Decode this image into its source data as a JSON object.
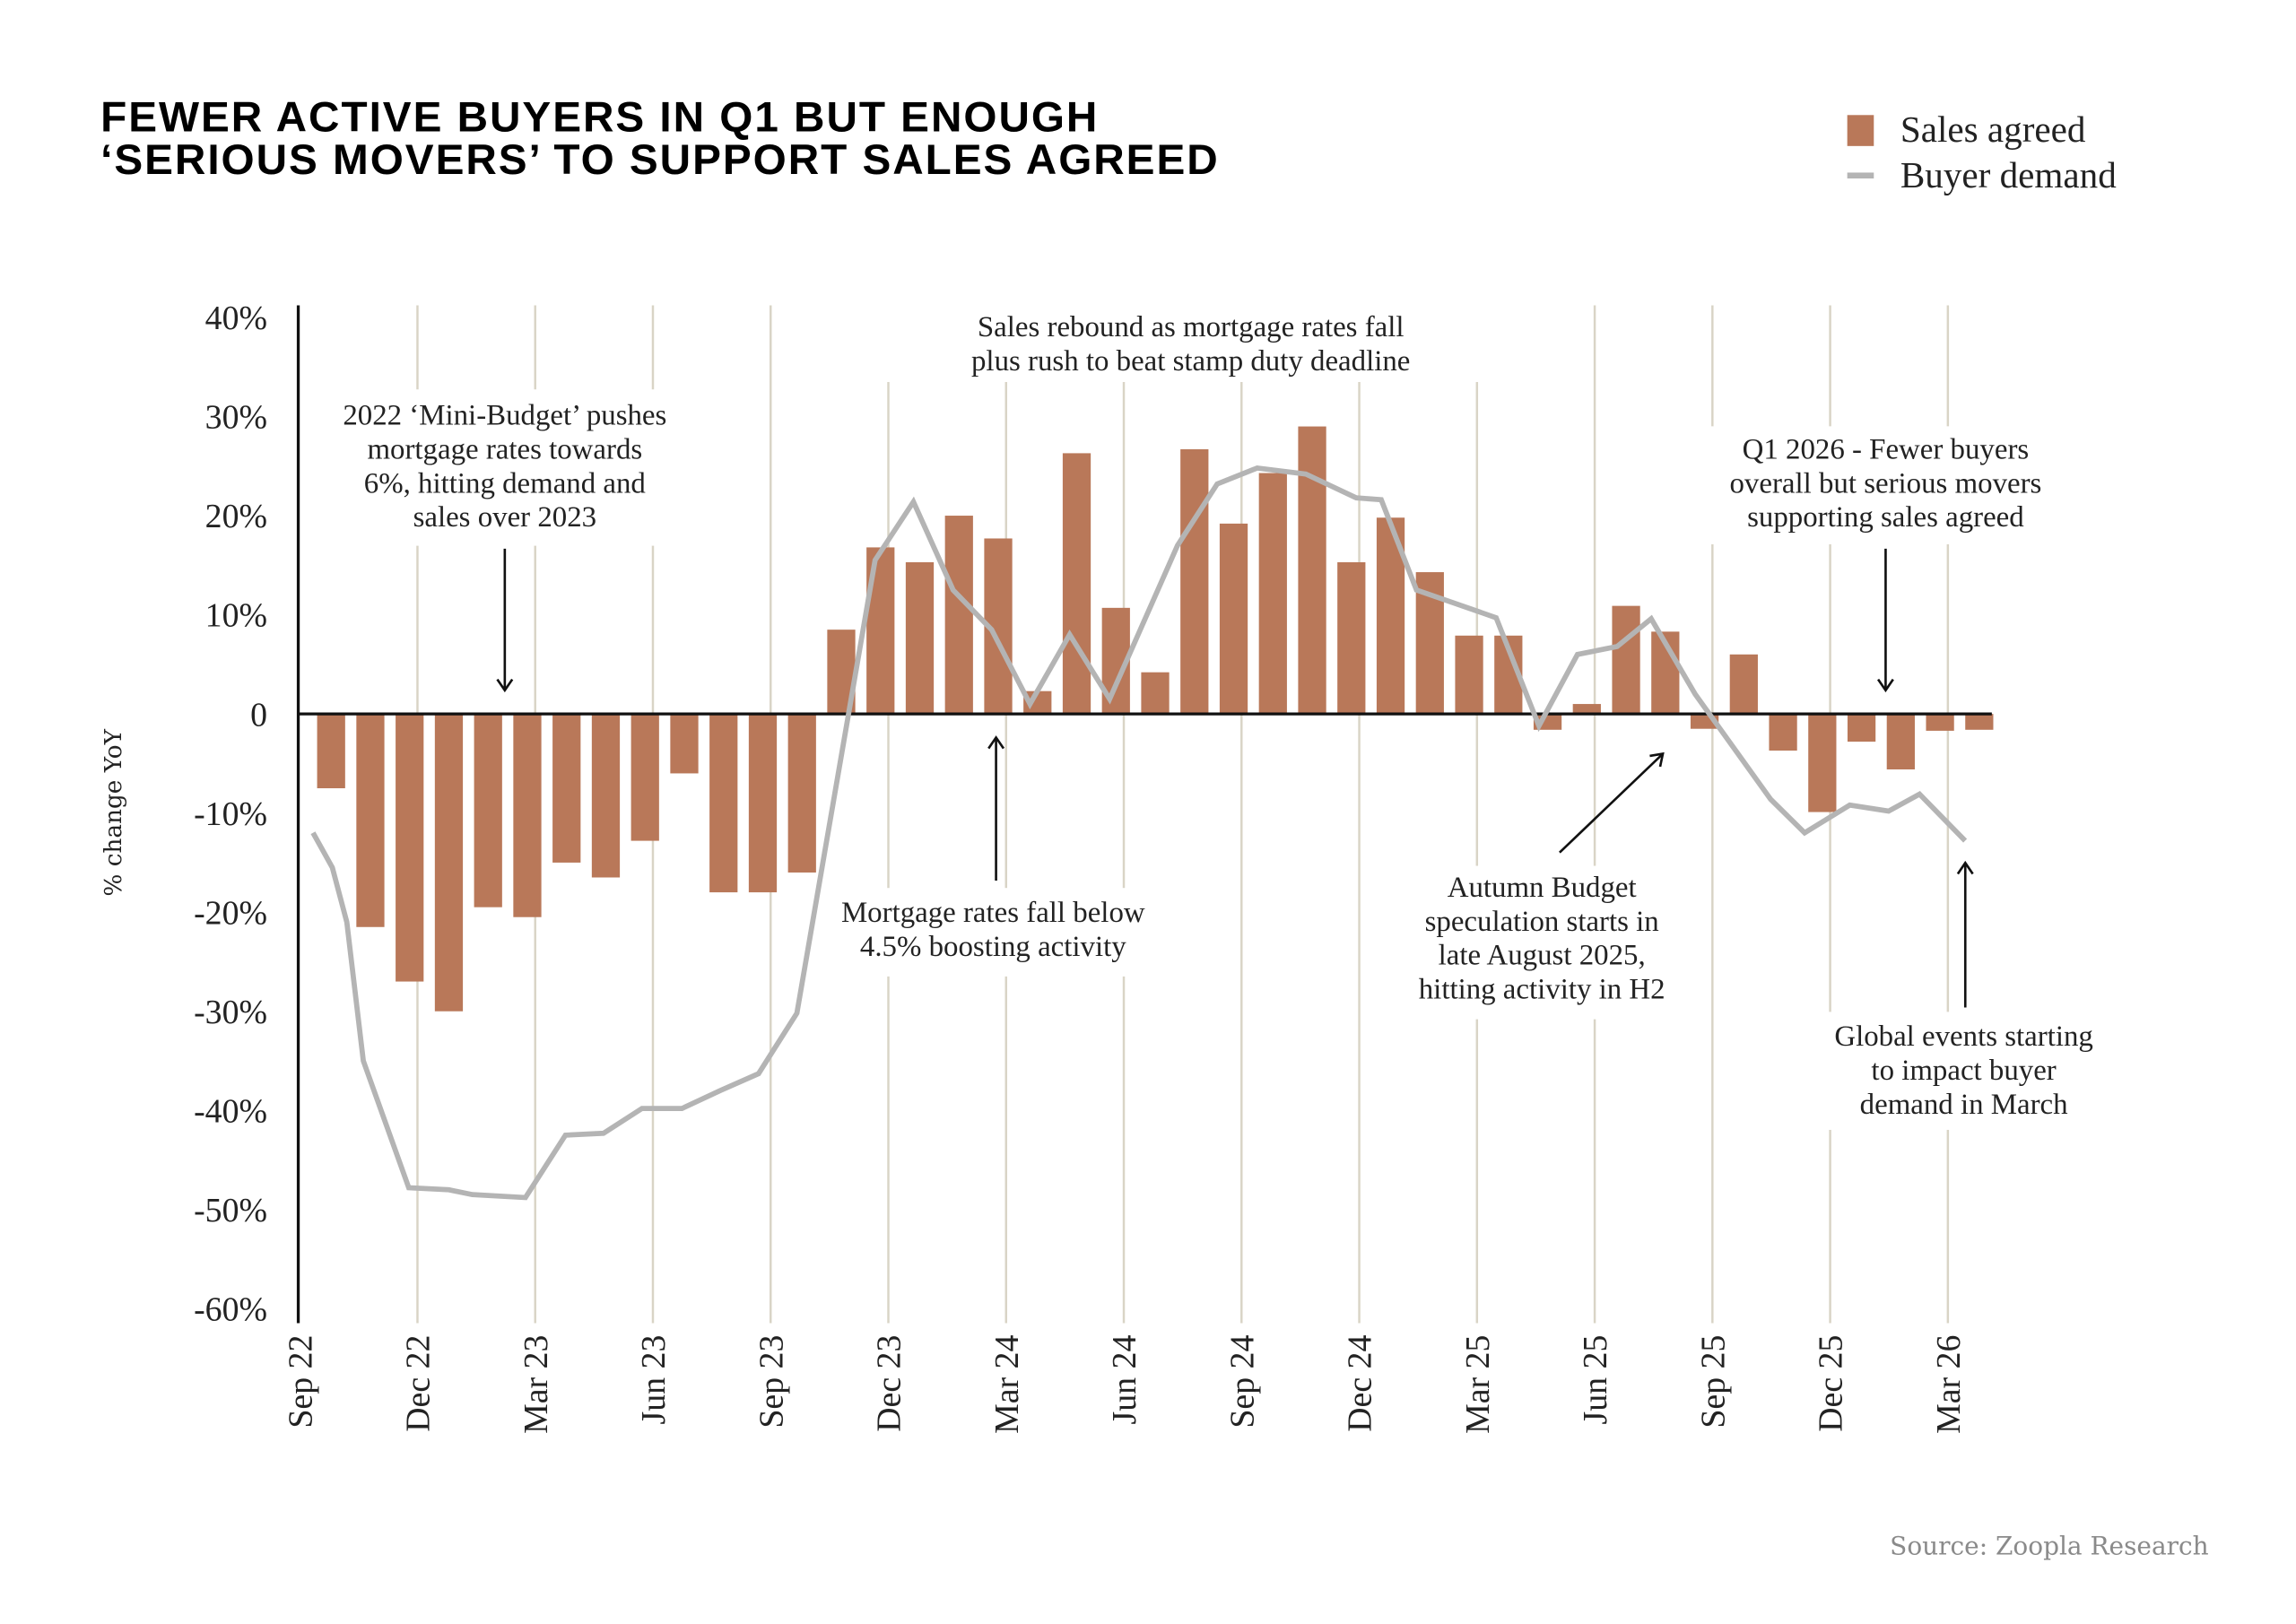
{
  "title_lines": [
    "FEWER ACTIVE BUYERS IN Q1 BUT ENOUGH",
    "‘SERIOUS MOVERS’ TO SUPPORT SALES AGREED"
  ],
  "source": "Source: Zoopla Research",
  "colors": {
    "title": "#c07a5b",
    "bar": "#b97859",
    "line": "#b4b4b4",
    "grid": "#d9d4c6",
    "axis": "#111111"
  },
  "chart_data": {
    "type": "bar+line",
    "ylabel": "% change YoY",
    "ylim": [
      -60,
      40
    ],
    "yticks": [
      40,
      30,
      20,
      10,
      0,
      -10,
      -20,
      -30,
      -40,
      -50,
      -60
    ],
    "ytick_labels": [
      "40%",
      "30%",
      "20%",
      "10%",
      "0",
      "-10%",
      "-20%",
      "-30%",
      "-40%",
      "-50%",
      "-60%"
    ],
    "xtick_labels": [
      "Sep 22",
      "Dec 22",
      "Mar 23",
      "Jun 23",
      "Sep 23",
      "Dec 23",
      "Mar 24",
      "Jun 24",
      "Sep 24",
      "Dec 24",
      "Mar 25",
      "Jun 25",
      "Sep 25",
      "Dec 25",
      "Mar 26"
    ],
    "x_unit": "months since Sep 22",
    "legend": {
      "placement": "top-right",
      "entries": [
        "Sales agreed",
        "Buyer demand"
      ]
    },
    "series": [
      {
        "name": "Sales agreed",
        "type": "bar",
        "values": [
          -7.5,
          -21.5,
          -27,
          -30,
          -19.5,
          -20.5,
          -15,
          -16.5,
          -12.8,
          -6,
          -18,
          -18,
          -16,
          8.5,
          16.8,
          15.3,
          20,
          17.7,
          2.3,
          26.3,
          10.7,
          4.2,
          26.7,
          19.2,
          24.3,
          29,
          15.3,
          19.8,
          14.3,
          7.9,
          7.9,
          -1.6,
          1,
          10.9,
          8.3,
          -1.5,
          6,
          -3.7,
          -9.9,
          -2.8,
          -5.6,
          -1.7,
          -1.6
        ]
      },
      {
        "name": "Buyer demand",
        "type": "line",
        "points": [
          [
            0.34,
            -12
          ],
          [
            0.83,
            -15.5
          ],
          [
            1.2,
            -21
          ],
          [
            1.62,
            -35
          ],
          [
            2.78,
            -47.8
          ],
          [
            3.8,
            -48
          ],
          [
            4.4,
            -48.5
          ],
          [
            5.75,
            -48.8
          ],
          [
            6.77,
            -42.5
          ],
          [
            7.74,
            -42.3
          ],
          [
            8.72,
            -39.8
          ],
          [
            9.74,
            -39.8
          ],
          [
            10.71,
            -38
          ],
          [
            11.69,
            -36.3
          ],
          [
            12.67,
            -30.2
          ],
          [
            14.66,
            15.5
          ],
          [
            15.64,
            21.4
          ],
          [
            16.65,
            12.5
          ],
          [
            17.63,
            8.5
          ],
          [
            18.61,
            1
          ],
          [
            19.62,
            8
          ],
          [
            20.64,
            1.5
          ],
          [
            22.37,
            17
          ],
          [
            23.38,
            23.2
          ],
          [
            24.4,
            24.8
          ],
          [
            25.64,
            24.2
          ],
          [
            26.92,
            21.8
          ],
          [
            27.56,
            21.6
          ],
          [
            28.46,
            12.5
          ],
          [
            30.49,
            9.7
          ],
          [
            31.58,
            -1.2
          ],
          [
            32.56,
            6
          ],
          [
            33.57,
            6.8
          ],
          [
            34.44,
            9.6
          ],
          [
            35.56,
            2
          ],
          [
            37.48,
            -8.6
          ],
          [
            38.35,
            -12
          ],
          [
            39.5,
            -9.2
          ],
          [
            40.49,
            -9.8
          ],
          [
            41.28,
            -8.1
          ],
          [
            42.44,
            -12.8
          ]
        ]
      }
    ],
    "annotations": [
      {
        "lines": [
          "2022 ‘Mini-Budget’ pushes",
          "mortgage rates towards",
          "6%, hitting demand and",
          "sales over 2023"
        ]
      },
      {
        "lines": [
          "Sales rebound as mortgage rates fall",
          "plus rush to beat stamp duty deadline"
        ]
      },
      {
        "lines": [
          "Mortgage rates fall below",
          "4.5% boosting activity"
        ]
      },
      {
        "lines": [
          "Autumn Budget",
          "speculation starts in",
          "late August 2025,",
          "hitting activity in H2"
        ]
      },
      {
        "lines": [
          "Q1 2026 - Fewer buyers",
          "overall but serious movers",
          "supporting sales agreed"
        ]
      },
      {
        "lines": [
          "Global events starting",
          "to impact buyer",
          "demand in March"
        ]
      }
    ]
  }
}
